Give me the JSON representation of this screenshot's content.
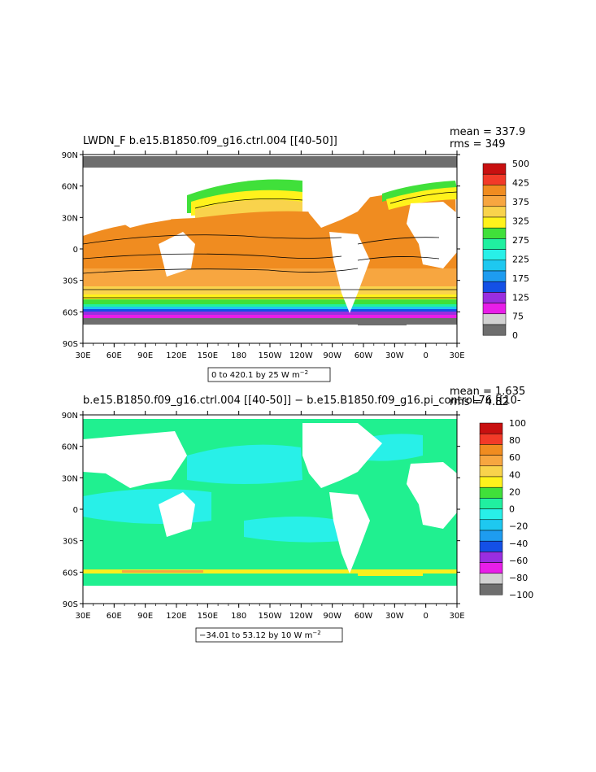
{
  "panels": [
    {
      "title": "LWDN_F  b.e15.B1850.f09_g16.ctrl.004  [[40-50]]",
      "stats": [
        "mean = 337.9",
        "rms = 349"
      ],
      "range_label": "0 to 420.1 by 25  W m",
      "range_exp": "−2",
      "lat_labels": [
        "90N",
        "60N",
        "30N",
        "0",
        "30S",
        "60S",
        "90S"
      ],
      "lon_labels": [
        "30E",
        "60E",
        "90E",
        "120E",
        "150E",
        "180",
        "150W",
        "120W",
        "90W",
        "60W",
        "30W",
        "0",
        "30E"
      ],
      "colorbar": {
        "labels": [
          "500",
          "425",
          "375",
          "325",
          "275",
          "225",
          "175",
          "125",
          "75",
          "0"
        ],
        "colors": [
          "#c81010",
          "#f23a28",
          "#f08c20",
          "#f7a640",
          "#f9d34c",
          "#fff21c",
          "#40e03a",
          "#20f0a0",
          "#28f0e8",
          "#1ec8f0",
          "#1e9cf0",
          "#1450e6",
          "#9a2ee0",
          "#e81ee8",
          "#d2d2d2",
          "#6e6e6e"
        ]
      }
    },
    {
      "title": "b.e15.B1850.f09_g16.ctrl.004  [[40-50]]  −  b.e15.B1850.f09_g16.pi_control.76  [[10-",
      "stats": [
        "mean = 1.635",
        "rms = 4.82"
      ],
      "range_label": "−34.01 to 53.12 by 10  W m",
      "range_exp": "−2",
      "lat_labels": [
        "90N",
        "60N",
        "30N",
        "0",
        "30S",
        "60S",
        "90S"
      ],
      "lon_labels": [
        "30E",
        "60E",
        "90E",
        "120E",
        "150E",
        "180",
        "150W",
        "120W",
        "90W",
        "60W",
        "30W",
        "0",
        "30E"
      ],
      "colorbar": {
        "labels": [
          "100",
          "80",
          "60",
          "40",
          "20",
          "0",
          "−20",
          "−40",
          "−60",
          "−80",
          "−100"
        ],
        "colors": [
          "#c81010",
          "#f23a28",
          "#f08c20",
          "#f7a640",
          "#f9d34c",
          "#fff21c",
          "#40e03a",
          "#20f0a0",
          "#28f0e8",
          "#1ec8f0",
          "#1e9cf0",
          "#1450e6",
          "#9a2ee0",
          "#e81ee8",
          "#d2d2d2",
          "#6e6e6e"
        ]
      }
    }
  ],
  "palette": {
    "upper_band_deep": "#f08c20",
    "upper_band_mid": "#f7a640",
    "upper_band_yellow": "#fff21c",
    "upper_band_green": "#40e03a",
    "ice_gray": "#6e6e6e",
    "diff_green": "#20f090",
    "diff_cyan": "#28f0e8",
    "diff_yellow": "#f9f01c"
  }
}
